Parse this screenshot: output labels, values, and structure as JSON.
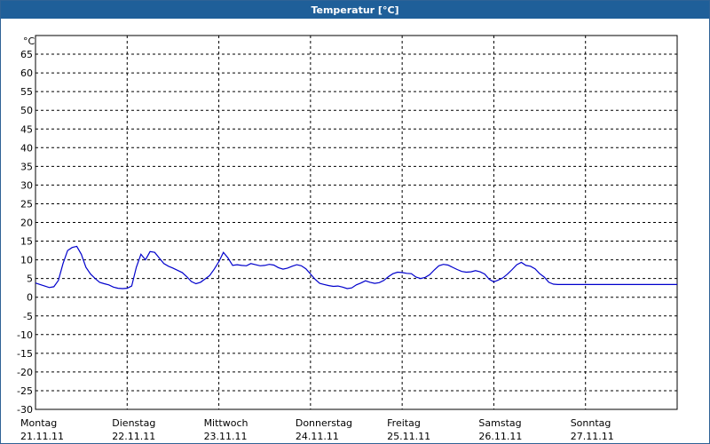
{
  "window": {
    "title": "Temperatur [°C]"
  },
  "chart_data": {
    "type": "line",
    "title": "Temperatur [°C]",
    "ylabel": "°C",
    "ylim": [
      -30,
      70
    ],
    "y_ticks": [
      65,
      60,
      55,
      50,
      45,
      40,
      35,
      30,
      25,
      20,
      15,
      10,
      5,
      0,
      -5,
      -10,
      -15,
      -20,
      -25,
      -30
    ],
    "x_range": [
      0,
      7
    ],
    "x_ticks": [
      {
        "x": 0,
        "day": "Montag",
        "date": "21.11.11"
      },
      {
        "x": 1,
        "day": "Dienstag",
        "date": "22.11.11"
      },
      {
        "x": 2,
        "day": "Mittwoch",
        "date": "23.11.11"
      },
      {
        "x": 3,
        "day": "Donnerstag",
        "date": "24.11.11"
      },
      {
        "x": 4,
        "day": "Freitag",
        "date": "25.11.11"
      },
      {
        "x": 5,
        "day": "Samstag",
        "date": "26.11.11"
      },
      {
        "x": 6,
        "day": "Sonntag",
        "date": "27.11.11"
      }
    ],
    "grid": true,
    "line_color": "#0000cc",
    "series": [
      {
        "x": [
          0.0,
          0.05,
          0.1,
          0.15,
          0.2,
          0.25,
          0.3,
          0.35,
          0.4,
          0.45,
          0.5,
          0.55,
          0.6,
          0.65,
          0.7,
          0.75,
          0.8,
          0.85,
          0.9,
          0.95,
          1.0,
          1.05,
          1.1,
          1.15,
          1.2,
          1.25,
          1.3,
          1.35,
          1.4,
          1.45,
          1.5,
          1.55,
          1.6,
          1.65,
          1.7,
          1.75,
          1.8,
          1.85,
          1.9,
          1.95,
          2.0,
          2.05,
          2.1,
          2.15,
          2.2,
          2.25,
          2.3,
          2.35,
          2.4,
          2.45,
          2.5,
          2.55,
          2.6,
          2.65,
          2.7,
          2.75,
          2.8,
          2.85,
          2.9,
          2.95,
          3.0,
          3.05,
          3.1,
          3.15,
          3.2,
          3.25,
          3.3,
          3.35,
          3.4,
          3.45,
          3.5,
          3.55,
          3.6,
          3.65,
          3.7,
          3.75,
          3.8,
          3.85,
          3.9,
          3.95,
          4.0,
          4.05,
          4.1,
          4.15,
          4.2,
          4.25,
          4.3,
          4.35,
          4.4,
          4.45,
          4.5,
          4.55,
          4.6,
          4.65,
          4.7,
          4.75,
          4.8,
          4.85,
          4.9,
          4.95,
          5.0,
          5.05,
          5.1,
          5.15,
          5.2,
          5.25,
          5.3,
          5.35,
          5.4,
          5.45,
          5.5,
          5.55,
          5.6,
          5.65,
          5.7,
          5.75,
          5.8,
          5.85,
          5.9,
          5.95,
          6.0,
          6.05,
          6.1,
          6.15,
          6.2,
          6.25,
          6.3,
          6.35,
          6.4,
          6.45,
          6.5,
          6.55,
          6.6,
          6.65,
          6.7,
          6.75,
          6.8,
          6.85,
          6.9,
          6.95,
          7.0
        ],
        "y": [
          3.8,
          3.4,
          3.0,
          2.6,
          2.8,
          4.5,
          9.0,
          12.5,
          13.3,
          13.6,
          11.5,
          8.0,
          6.2,
          5.0,
          4.0,
          3.6,
          3.3,
          2.7,
          2.4,
          2.3,
          2.4,
          3.0,
          8.0,
          11.5,
          10.0,
          12.2,
          12.0,
          10.5,
          9.0,
          8.3,
          7.8,
          7.2,
          6.6,
          5.5,
          4.2,
          3.6,
          4.0,
          4.9,
          5.8,
          7.5,
          9.5,
          12.0,
          10.5,
          8.5,
          8.7,
          8.5,
          8.4,
          9.0,
          8.7,
          8.4,
          8.5,
          8.8,
          8.6,
          7.9,
          7.5,
          7.8,
          8.3,
          8.7,
          8.4,
          7.6,
          6.2,
          4.8,
          3.7,
          3.4,
          3.1,
          2.9,
          3.0,
          2.7,
          2.3,
          2.5,
          3.3,
          3.8,
          4.4,
          4.0,
          3.7,
          3.9,
          4.5,
          5.5,
          6.3,
          6.7,
          6.6,
          6.4,
          6.3,
          5.4,
          5.0,
          5.3,
          6.0,
          7.3,
          8.4,
          8.8,
          8.6,
          8.0,
          7.4,
          6.9,
          6.7,
          6.8,
          7.1,
          6.8,
          6.2,
          4.8,
          4.1,
          4.6,
          5.2,
          6.2,
          7.4,
          8.7,
          9.3,
          8.5,
          8.3,
          7.6,
          6.3,
          5.4,
          4.0,
          3.5,
          3.4,
          3.4,
          3.4,
          3.4,
          3.4,
          3.4,
          3.4,
          3.4,
          3.4,
          3.4,
          3.4,
          3.4,
          3.4,
          3.4,
          3.4,
          3.4,
          3.4,
          3.4,
          3.4,
          3.4,
          3.4,
          3.4,
          3.4,
          3.4,
          3.4,
          3.4,
          3.4
        ]
      }
    ]
  }
}
